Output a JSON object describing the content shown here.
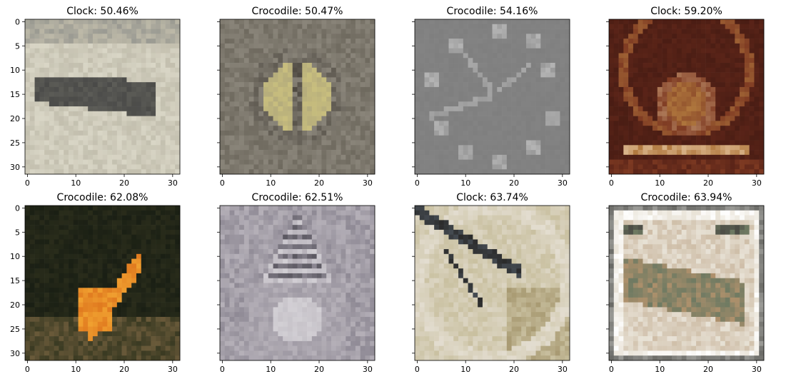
{
  "chart_data": [
    {
      "type": "image",
      "title": "Clock: 50.46%",
      "x_ticks": [
        0,
        10,
        20,
        30
      ],
      "y_ticks": [
        0,
        5,
        10,
        15,
        20,
        25,
        30
      ],
      "xlim": [
        -0.5,
        31.5
      ],
      "ylim": [
        31.5,
        -0.5
      ],
      "image_content": "crocodile-on-rock",
      "palette": [
        "#d9d6c6",
        "#bdb9a8",
        "#9a9a92",
        "#4a4a48",
        "#6e6e66"
      ]
    },
    {
      "type": "image",
      "title": "Crocodile: 50.47%",
      "x_ticks": [
        0,
        10,
        20,
        30
      ],
      "y_ticks": [
        0,
        5,
        10,
        15,
        20,
        25,
        30
      ],
      "xlim": [
        -0.5,
        31.5
      ],
      "ylim": [
        31.5,
        -0.5
      ],
      "image_content": "reptile-eye",
      "palette": [
        "#6f6a5f",
        "#8a857a",
        "#c9bf7e",
        "#a8a07a",
        "#4f4a42"
      ]
    },
    {
      "type": "image",
      "title": "Crocodile: 54.16%",
      "x_ticks": [
        0,
        10,
        20,
        30
      ],
      "y_ticks": [
        0,
        5,
        10,
        15,
        20,
        25,
        30
      ],
      "xlim": [
        -0.5,
        31.5
      ],
      "ylim": [
        31.5,
        -0.5
      ],
      "image_content": "grey-clock-face",
      "palette": [
        "#7f7f7f",
        "#9a9a9a",
        "#b5b5b5"
      ]
    },
    {
      "type": "image",
      "title": "Clock: 59.20%",
      "x_ticks": [
        0,
        10,
        20,
        30
      ],
      "y_ticks": [
        0,
        5,
        10,
        15,
        20,
        25,
        30
      ],
      "xlim": [
        -0.5,
        31.5
      ],
      "ylim": [
        31.5,
        -0.5
      ],
      "image_content": "wooden-mantel-clock",
      "palette": [
        "#5a2418",
        "#7e3a22",
        "#b0783e",
        "#d9b48a",
        "#3a1610"
      ]
    },
    {
      "type": "image",
      "title": "Crocodile: 62.08%",
      "x_ticks": [
        0,
        10,
        20,
        30
      ],
      "y_ticks": [
        0,
        5,
        10,
        15,
        20,
        25,
        30
      ],
      "xlim": [
        -0.5,
        31.5
      ],
      "ylim": [
        31.5,
        -0.5
      ],
      "image_content": "orange-crocodile-on-dark",
      "palette": [
        "#1a1f14",
        "#3a3a22",
        "#e07a1f",
        "#f0a030",
        "#6a5a3a"
      ]
    },
    {
      "type": "image",
      "title": "Crocodile: 62.51%",
      "x_ticks": [
        0,
        10,
        20,
        30
      ],
      "y_ticks": [
        0,
        5,
        10,
        15,
        20,
        25,
        30
      ],
      "xlim": [
        -0.5,
        31.5
      ],
      "ylim": [
        31.5,
        -0.5
      ],
      "image_content": "silver-clock-tower",
      "palette": [
        "#8f8a95",
        "#b5b0b8",
        "#d2cfd4",
        "#5a5760"
      ]
    },
    {
      "type": "image",
      "title": "Clock: 63.74%",
      "x_ticks": [
        0,
        10,
        20,
        30
      ],
      "y_ticks": [
        0,
        5,
        10,
        15,
        20,
        25,
        30
      ],
      "xlim": [
        -0.5,
        31.5
      ],
      "ylim": [
        31.5,
        -0.5
      ],
      "image_content": "clock-closeup-hands",
      "palette": [
        "#c9c0a0",
        "#a89a72",
        "#e3ddd0",
        "#2a2a2a",
        "#6a7a8a"
      ]
    },
    {
      "type": "image",
      "title": "Crocodile: 63.94%",
      "x_ticks": [
        0,
        10,
        20,
        30
      ],
      "y_ticks": [
        0,
        5,
        10,
        15,
        20,
        25,
        30
      ],
      "xlim": [
        -0.5,
        31.5
      ],
      "ylim": [
        31.5,
        -0.5
      ],
      "image_content": "crocodile-stamp",
      "palette": [
        "#e8e2d6",
        "#b59a7a",
        "#6f7a62",
        "#4a4a44",
        "#c99a70"
      ]
    }
  ]
}
